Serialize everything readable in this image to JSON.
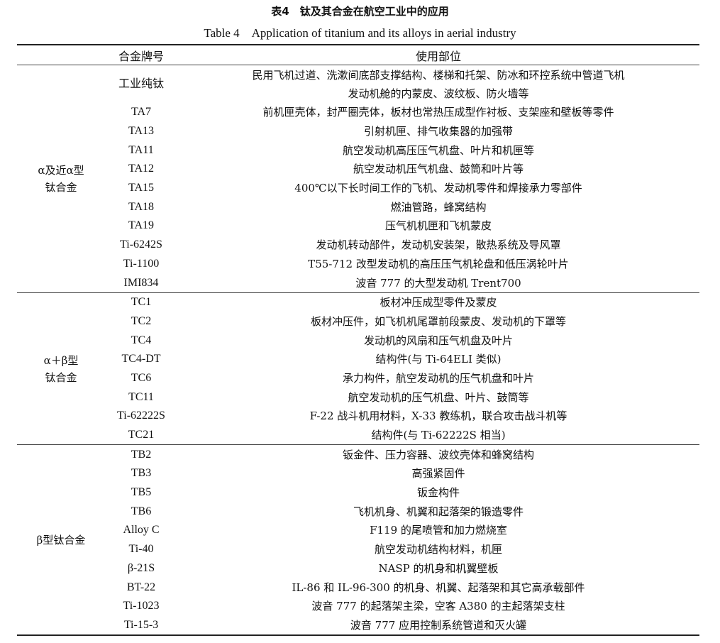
{
  "title_cn": "表4　钛及其合金在航空工业中的应用",
  "title_en": "Table 4　Application of titanium and its alloys in aerial industry",
  "headers": {
    "grade": "合金牌号",
    "use": "使用部位"
  },
  "groups": [
    {
      "label": "α及近α型\n钛合金",
      "rows": [
        {
          "grade": "工业纯钛",
          "use": "民用飞机过道、洗漱间底部支撑结构、楼梯和托架、防冰和环控系统中管道飞机\n发动机舱的内蒙皮、波纹板、防火墙等"
        },
        {
          "grade": "TA7",
          "use": "前机匣壳体，封严圈壳体，板材也常热压成型作衬板、支架座和壁板等零件"
        },
        {
          "grade": "TA13",
          "use": "引射机匣、排气收集器的加强带"
        },
        {
          "grade": "TA11",
          "use": "航空发动机高压压气机盘、叶片和机匣等"
        },
        {
          "grade": "TA12",
          "use": "航空发动机压气机盘、鼓筒和叶片等"
        },
        {
          "grade": "TA15",
          "use": "400℃以下长时间工作的飞机、发动机零件和焊接承力零部件"
        },
        {
          "grade": "TA18",
          "use": "燃油管路，蜂窝结构"
        },
        {
          "grade": "TA19",
          "use": "压气机机匣和飞机蒙皮"
        },
        {
          "grade": "Ti-6242S",
          "use": "发动机转动部件，发动机安装架，散热系统及导风罩"
        },
        {
          "grade": "Ti-1100",
          "use": "T55-712 改型发动机的高压压气机轮盘和低压涡轮叶片"
        },
        {
          "grade": "IMI834",
          "use": "波音 777 的大型发动机 Trent700"
        }
      ]
    },
    {
      "label": "α＋β型\n钛合金",
      "rows": [
        {
          "grade": "TC1",
          "use": "板材冲压成型零件及蒙皮"
        },
        {
          "grade": "TC2",
          "use": "板材冲压件，如飞机机尾罩前段蒙皮、发动机的下罩等"
        },
        {
          "grade": "TC4",
          "use": "发动机的风扇和压气机盘及叶片"
        },
        {
          "grade": "TC4-DT",
          "use": "结构件(与 Ti-64ELI 类似)"
        },
        {
          "grade": "TC6",
          "use": "承力构件，航空发动机的压气机盘和叶片"
        },
        {
          "grade": "TC11",
          "use": "航空发动机的压气机盘、叶片、鼓筒等"
        },
        {
          "grade": "Ti-62222S",
          "use": "F-22 战斗机用材料，X-33 教练机，联合攻击战斗机等"
        },
        {
          "grade": "TC21",
          "use": "结构件(与 Ti-62222S 相当)"
        }
      ]
    },
    {
      "label": "β型钛合金",
      "rows": [
        {
          "grade": "TB2",
          "use": "钣金件、压力容器、波纹壳体和蜂窝结构"
        },
        {
          "grade": "TB3",
          "use": "高强紧固件"
        },
        {
          "grade": "TB5",
          "use": "钣金构件"
        },
        {
          "grade": "TB6",
          "use": "飞机机身、机翼和起落架的锻造零件"
        },
        {
          "grade": "Alloy C",
          "use": "F119 的尾喷管和加力燃烧室"
        },
        {
          "grade": "Ti-40",
          "use": "航空发动机结构材料，机匣"
        },
        {
          "grade": "β-21S",
          "use": "NASP 的机身和机翼壁板"
        },
        {
          "grade": "BT-22",
          "use": "IL-86 和 IL-96-300 的机身、机翼、起落架和其它高承载部件"
        },
        {
          "grade": "Ti-1023",
          "use": "波音 777 的起落架主梁，空客 A380 的主起落架支柱"
        },
        {
          "grade": "Ti-15-3",
          "use": "波音 777 应用控制系统管道和灭火罐"
        }
      ]
    }
  ]
}
